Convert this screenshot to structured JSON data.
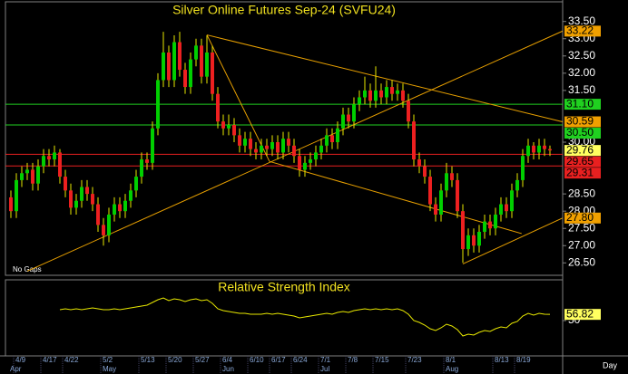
{
  "chart_data": [
    {
      "type": "candlestick",
      "title": "Silver Online Futures Sep-24 (SVFU24)",
      "note": "No Gaps",
      "xlabel": "Day",
      "categories": [
        null,
        "4/9",
        null,
        null,
        null,
        null,
        "4/17",
        null,
        null,
        null,
        "4/22",
        null,
        null,
        null,
        null,
        null,
        null,
        "5/2",
        null,
        null,
        null,
        null,
        null,
        null,
        "5/13",
        null,
        null,
        null,
        null,
        "5/20",
        null,
        null,
        null,
        null,
        "5/27",
        null,
        null,
        null,
        null,
        "6/4",
        null,
        null,
        null,
        null,
        "6/10",
        null,
        null,
        null,
        "6/17",
        null,
        null,
        null,
        "6/24",
        null,
        null,
        null,
        null,
        "7/1",
        null,
        null,
        null,
        null,
        "7/8",
        null,
        null,
        null,
        null,
        "7/15",
        null,
        null,
        null,
        null,
        null,
        "7/23",
        null,
        null,
        null,
        null,
        null,
        null,
        "8/1",
        null,
        null,
        null,
        null,
        null,
        null,
        null,
        null,
        "8/13",
        null,
        null,
        null,
        "8/19",
        null,
        null,
        null,
        null,
        null,
        null
      ],
      "months": [
        "Apr",
        null,
        null,
        null,
        null,
        null,
        null,
        null,
        null,
        null,
        null,
        null,
        null,
        null,
        null,
        null,
        null,
        "May",
        null,
        null,
        null,
        null,
        null,
        null,
        null,
        null,
        null,
        null,
        null,
        null,
        null,
        null,
        null,
        null,
        null,
        null,
        null,
        null,
        null,
        "Jun",
        null,
        null,
        null,
        null,
        null,
        null,
        null,
        null,
        null,
        null,
        null,
        null,
        null,
        null,
        null,
        null,
        null,
        "Jul",
        null,
        null,
        null,
        null,
        null,
        null,
        null,
        null,
        null,
        null,
        null,
        null,
        null,
        null,
        null,
        null,
        null,
        null,
        null,
        null,
        null,
        null,
        "Aug",
        null,
        null,
        null,
        null,
        null,
        null,
        null,
        null,
        null,
        null,
        null,
        null,
        null,
        null,
        null,
        null,
        null,
        null,
        null
      ],
      "ohlc": [
        [
          28.4,
          28.6,
          27.8,
          28.0
        ],
        [
          28.0,
          29.1,
          27.8,
          28.9
        ],
        [
          28.9,
          29.3,
          28.7,
          29.1
        ],
        [
          29.1,
          29.4,
          28.9,
          29.2
        ],
        [
          29.2,
          29.4,
          28.6,
          28.8
        ],
        [
          28.8,
          29.5,
          28.6,
          29.3
        ],
        [
          29.3,
          29.8,
          29.1,
          29.6
        ],
        [
          29.6,
          29.8,
          29.3,
          29.5
        ],
        [
          29.5,
          29.9,
          29.3,
          29.7
        ],
        [
          29.7,
          29.8,
          28.8,
          29.0
        ],
        [
          29.0,
          29.2,
          28.4,
          28.6
        ],
        [
          28.6,
          28.8,
          27.9,
          28.1
        ],
        [
          28.1,
          28.5,
          27.9,
          28.3
        ],
        [
          28.3,
          28.9,
          28.1,
          28.7
        ],
        [
          28.7,
          28.9,
          28.3,
          28.5
        ],
        [
          28.5,
          28.7,
          28.0,
          28.2
        ],
        [
          28.2,
          28.4,
          27.4,
          27.6
        ],
        [
          27.6,
          27.8,
          27.0,
          27.3
        ],
        [
          27.3,
          28.1,
          27.1,
          27.9
        ],
        [
          27.9,
          28.4,
          27.7,
          28.2
        ],
        [
          28.2,
          28.4,
          27.8,
          28.0
        ],
        [
          28.0,
          28.5,
          27.8,
          28.3
        ],
        [
          28.3,
          28.8,
          28.1,
          28.6
        ],
        [
          28.6,
          29.2,
          28.4,
          29.0
        ],
        [
          29.0,
          29.7,
          28.8,
          29.5
        ],
        [
          29.5,
          29.7,
          29.2,
          29.4
        ],
        [
          29.4,
          30.6,
          29.2,
          30.4
        ],
        [
          30.4,
          32.0,
          30.2,
          31.8
        ],
        [
          31.8,
          33.2,
          31.6,
          32.6
        ],
        [
          32.6,
          32.8,
          31.6,
          31.8
        ],
        [
          31.8,
          33.1,
          31.6,
          32.9
        ],
        [
          32.9,
          33.2,
          31.9,
          32.1
        ],
        [
          32.1,
          32.3,
          31.4,
          31.6
        ],
        [
          31.6,
          32.6,
          31.4,
          32.4
        ],
        [
          32.4,
          33.0,
          32.2,
          32.8
        ],
        [
          32.8,
          33.0,
          31.7,
          31.9
        ],
        [
          31.9,
          33.1,
          31.7,
          32.6
        ],
        [
          32.6,
          32.8,
          31.2,
          31.4
        ],
        [
          31.4,
          31.6,
          30.4,
          30.6
        ],
        [
          30.6,
          30.8,
          30.2,
          30.4
        ],
        [
          30.4,
          30.8,
          30.2,
          30.5
        ],
        [
          30.5,
          30.7,
          30.0,
          30.2
        ],
        [
          30.2,
          30.4,
          29.7,
          29.9
        ],
        [
          29.9,
          30.3,
          29.7,
          30.1
        ],
        [
          30.1,
          30.3,
          29.6,
          29.8
        ],
        [
          29.8,
          30.0,
          29.5,
          29.7
        ],
        [
          29.7,
          30.1,
          29.5,
          29.9
        ],
        [
          29.9,
          30.1,
          29.6,
          29.8
        ],
        [
          29.8,
          30.2,
          29.6,
          30.0
        ],
        [
          30.0,
          30.2,
          29.5,
          29.7
        ],
        [
          29.7,
          30.3,
          29.5,
          30.1
        ],
        [
          30.1,
          30.3,
          29.7,
          29.9
        ],
        [
          29.9,
          30.1,
          29.4,
          29.6
        ],
        [
          29.6,
          29.8,
          29.0,
          29.2
        ],
        [
          29.2,
          29.6,
          29.0,
          29.4
        ],
        [
          29.4,
          29.7,
          29.2,
          29.5
        ],
        [
          29.5,
          29.9,
          29.3,
          29.7
        ],
        [
          29.7,
          30.1,
          29.5,
          29.9
        ],
        [
          29.9,
          30.4,
          29.7,
          30.2
        ],
        [
          30.2,
          30.4,
          29.8,
          30.0
        ],
        [
          30.0,
          30.6,
          29.8,
          30.4
        ],
        [
          30.4,
          31.0,
          30.2,
          30.8
        ],
        [
          30.8,
          31.0,
          30.4,
          30.6
        ],
        [
          30.6,
          31.3,
          30.4,
          31.1
        ],
        [
          31.1,
          31.5,
          30.9,
          31.3
        ],
        [
          31.3,
          31.9,
          31.1,
          31.5
        ],
        [
          31.5,
          31.7,
          31.0,
          31.2
        ],
        [
          31.2,
          32.2,
          31.0,
          31.5
        ],
        [
          31.5,
          31.7,
          31.1,
          31.3
        ],
        [
          31.3,
          31.8,
          31.1,
          31.6
        ],
        [
          31.6,
          31.8,
          31.2,
          31.4
        ],
        [
          31.4,
          31.7,
          31.2,
          31.5
        ],
        [
          31.5,
          31.7,
          31.0,
          31.2
        ],
        [
          31.2,
          31.4,
          30.4,
          30.6
        ],
        [
          30.6,
          30.8,
          29.3,
          29.5
        ],
        [
          29.5,
          29.7,
          29.1,
          29.3
        ],
        [
          29.3,
          29.5,
          28.8,
          29.0
        ],
        [
          29.0,
          29.2,
          28.0,
          28.2
        ],
        [
          28.2,
          28.4,
          27.7,
          27.9
        ],
        [
          27.9,
          28.8,
          27.7,
          28.6
        ],
        [
          28.6,
          29.4,
          28.4,
          29.1
        ],
        [
          29.1,
          29.3,
          28.7,
          28.9
        ],
        [
          28.9,
          29.1,
          27.8,
          28.0
        ],
        [
          28.0,
          28.2,
          26.5,
          26.9
        ],
        [
          26.9,
          27.5,
          26.7,
          27.3
        ],
        [
          27.3,
          27.5,
          26.8,
          27.0
        ],
        [
          27.0,
          27.6,
          26.8,
          27.4
        ],
        [
          27.4,
          27.9,
          27.2,
          27.7
        ],
        [
          27.7,
          27.9,
          27.3,
          27.5
        ],
        [
          27.5,
          28.1,
          27.3,
          27.9
        ],
        [
          27.9,
          28.4,
          27.7,
          28.2
        ],
        [
          28.2,
          28.4,
          27.8,
          28.0
        ],
        [
          28.0,
          28.8,
          27.8,
          28.6
        ],
        [
          28.6,
          29.1,
          28.4,
          28.9
        ],
        [
          28.9,
          29.8,
          28.7,
          29.6
        ],
        [
          29.6,
          30.1,
          29.4,
          29.9
        ],
        [
          29.9,
          30.0,
          29.5,
          29.7
        ],
        [
          29.7,
          30.1,
          29.5,
          29.9
        ],
        [
          29.9,
          30.1,
          29.6,
          29.8
        ],
        [
          29.8,
          29.9,
          29.6,
          29.76
        ]
      ],
      "up_color": "#00d000",
      "down_color": "#ee2020",
      "wick_color": "#e8e800",
      "last_color": "#ffff60",
      "ylim": [
        26.14,
        34.07
      ],
      "yticks": [
        {
          "value": 33.5,
          "label": "33.50"
        },
        {
          "value": 33,
          "label": "33.00"
        },
        {
          "value": 32.5,
          "label": "32.50"
        },
        {
          "value": 32,
          "label": "32.00"
        },
        {
          "value": 31.5,
          "label": "31.50"
        },
        {
          "value": 30,
          "label": "30.00"
        },
        {
          "value": 28.5,
          "label": "28.50"
        },
        {
          "value": 28,
          "label": "28.00"
        },
        {
          "value": 27.5,
          "label": "27.50"
        },
        {
          "value": 27,
          "label": "27.00"
        },
        {
          "value": 26.5,
          "label": "26.50"
        }
      ],
      "trendlines": [
        {
          "x": [
            3,
            101.3
          ],
          "y": [
            26.26,
            33.22
          ],
          "color": "#e8a000"
        },
        {
          "x": [
            36,
            101.3
          ],
          "y": [
            33.11,
            30.59
          ],
          "color": "#e8a000"
        },
        {
          "x": [
            36,
            47.5
          ],
          "y": [
            33.11,
            29.44
          ],
          "color": "#e8a000"
        },
        {
          "x": [
            47.5,
            93.8
          ],
          "y": [
            29.44,
            27.35
          ],
          "color": "#e8a000"
        },
        {
          "x": [
            83,
            101.3
          ],
          "y": [
            26.47,
            27.8
          ],
          "color": "#e8a000"
        }
      ],
      "markers": [
        {
          "value": 33.22,
          "color": "#f0a000",
          "level": false
        },
        {
          "value": 31.1,
          "label": "31.10",
          "color": "#20d020",
          "level": true
        },
        {
          "value": 30.59,
          "color": "#f0a000",
          "level": false
        },
        {
          "value": 30.5,
          "label": "30.50",
          "color": "#20d020",
          "level": true
        },
        {
          "value": 29.65,
          "color": "#e82020",
          "level": true
        },
        {
          "value": 29.31,
          "color": "#e82020",
          "level": true
        },
        {
          "value": 27.8,
          "label": "27.80",
          "color": "#f0a000",
          "level": false
        }
      ]
    },
    {
      "type": "line",
      "title": "Relative Strength Index",
      "values": [
        null,
        null,
        null,
        null,
        null,
        null,
        null,
        null,
        null,
        62,
        63,
        62,
        63,
        62,
        63,
        64,
        63,
        62,
        62,
        63,
        62,
        63,
        64,
        65,
        66,
        67,
        70,
        73,
        75,
        72,
        74,
        73,
        71,
        73,
        74,
        72,
        73,
        69,
        63,
        61,
        60,
        59,
        58,
        58,
        57,
        57,
        57,
        58,
        57,
        58,
        57,
        56,
        55,
        53,
        54,
        55,
        56,
        57,
        58,
        57,
        59,
        60,
        59,
        61,
        62,
        63,
        62,
        63,
        62,
        63,
        62,
        63,
        61,
        57,
        50,
        48,
        45,
        41,
        39,
        42,
        46,
        44,
        40,
        33,
        35,
        34,
        37,
        39,
        38,
        41,
        43,
        42,
        47,
        49,
        55,
        58,
        56,
        58,
        57,
        56.82
      ],
      "color": "#e8e800",
      "last_color": "#ffff60",
      "ylim": [
        12,
        94
      ],
      "yticks": [
        50
      ]
    }
  ]
}
